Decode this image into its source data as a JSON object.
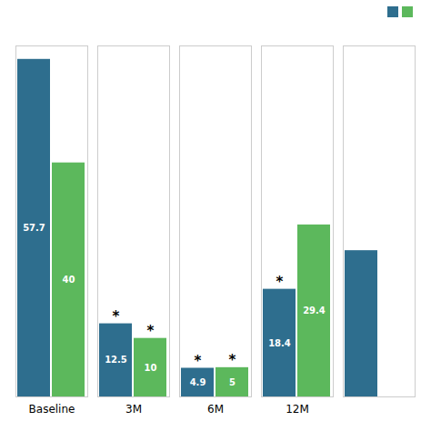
{
  "chart_data": {
    "type": "bar",
    "categories": [
      "Baseline",
      "3M",
      "6M",
      "12M",
      null
    ],
    "series": [
      {
        "color": "#2e6e8e",
        "values": [
          57.7,
          12.5,
          4.9,
          18.4,
          25.0
        ],
        "value_labels": [
          "57.7",
          "12.5",
          "4.9",
          "18.4",
          null
        ],
        "annotations": [
          null,
          "*",
          "*",
          "*",
          null
        ]
      },
      {
        "color": "#5cb85c",
        "values": [
          40.0,
          10.0,
          5.0,
          29.4,
          null
        ],
        "value_labels": [
          "40",
          "10",
          "5",
          "29.4",
          null
        ],
        "annotations": [
          null,
          "*",
          "*",
          null,
          null
        ]
      }
    ],
    "ylim": [
      0,
      60
    ],
    "grid": false,
    "tick_labels": "x",
    "data_labels": true,
    "legend": "upper right"
  }
}
